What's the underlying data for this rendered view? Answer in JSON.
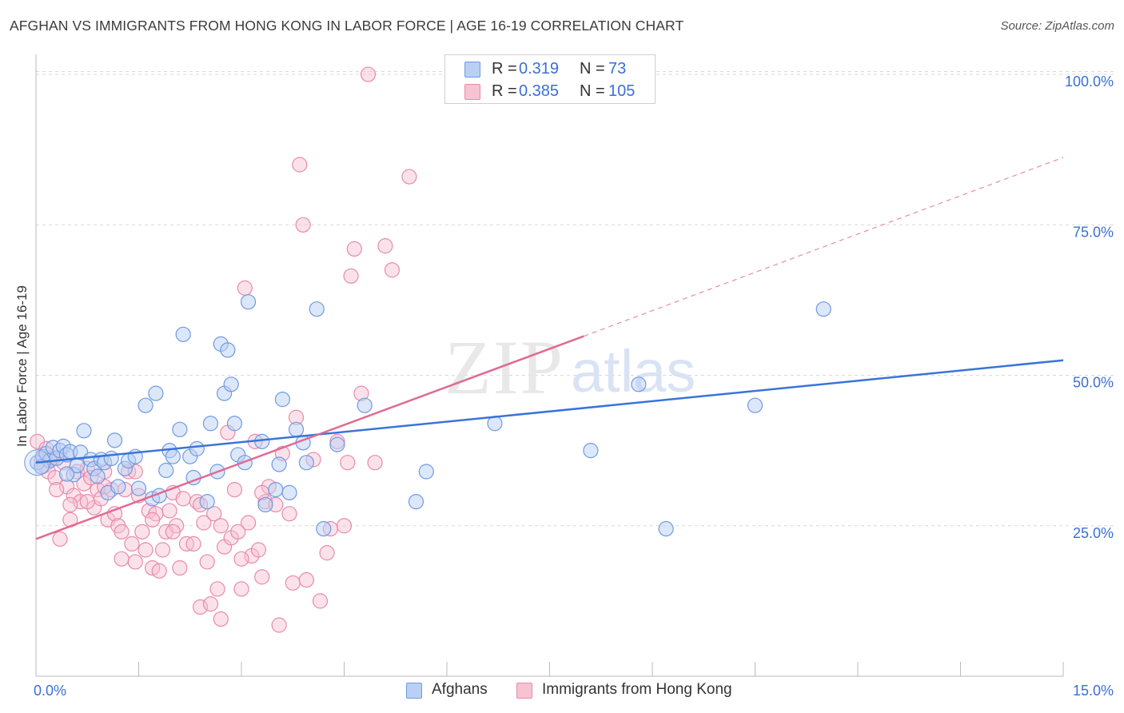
{
  "title": "AFGHAN VS IMMIGRANTS FROM HONG KONG IN LABOR FORCE | AGE 16-19 CORRELATION CHART",
  "source": "Source: ZipAtlas.com",
  "watermark": {
    "zip": "ZIP",
    "atlas": "atlas"
  },
  "colors": {
    "blue": "#3a74d8",
    "blue_fill": "#b9d0f4",
    "pink": "#e06a94",
    "pink_fill": "#f6bfd0",
    "axis_value": "#3a6fd8",
    "grid": "#d9d9d9"
  },
  "legend": {
    "series": [
      {
        "r_label": "R =",
        "r_value": "0.319",
        "n_label": "N =",
        "n_value": "73"
      },
      {
        "r_label": "R =",
        "r_value": "0.385",
        "n_label": "N =",
        "n_value": "105"
      }
    ]
  },
  "bottom_legend": {
    "afghans": "Afghans",
    "hongkong": "Immigrants from Hong Kong"
  },
  "chart_data": {
    "type": "scatter",
    "title": "AFGHAN VS IMMIGRANTS FROM HONG KONG IN LABOR FORCE | AGE 16-19 CORRELATION CHART",
    "xlabel": "",
    "ylabel": "In Labor Force | Age 16-19",
    "xlim": [
      0,
      15
    ],
    "ylim": [
      0,
      102
    ],
    "x_tick_labels": [
      {
        "value": 0,
        "label": "0.0%"
      },
      {
        "value": 15,
        "label": "15.0%"
      }
    ],
    "y_tick_labels": [
      {
        "value": 25,
        "label": "25.0%"
      },
      {
        "value": 50,
        "label": "50.0%"
      },
      {
        "value": 75,
        "label": "75.0%"
      },
      {
        "value": 100,
        "label": "100.0%"
      }
    ],
    "series": [
      {
        "name": "Afghans",
        "color": "#3a74d8",
        "trend": {
          "x0": 0,
          "y0": 35.5,
          "x1": 15,
          "y1": 52.5
        },
        "points": [
          [
            0.02,
            35.5
          ],
          [
            0.1,
            36.5
          ],
          [
            0.15,
            37
          ],
          [
            0.2,
            35.8
          ],
          [
            0.25,
            38
          ],
          [
            0.3,
            36.2
          ],
          [
            0.35,
            37.5
          ],
          [
            0.4,
            38.2
          ],
          [
            0.45,
            36.8
          ],
          [
            0.5,
            37.3
          ],
          [
            0.55,
            33.5
          ],
          [
            0.6,
            35
          ],
          [
            0.65,
            37.2
          ],
          [
            0.7,
            40.8
          ],
          [
            0.8,
            36
          ],
          [
            0.85,
            34.5
          ],
          [
            0.9,
            33.2
          ],
          [
            0.95,
            36
          ],
          [
            1.0,
            35.5
          ],
          [
            1.05,
            30.5
          ],
          [
            1.1,
            36.2
          ],
          [
            1.15,
            39.2
          ],
          [
            1.2,
            31.5
          ],
          [
            1.3,
            34.5
          ],
          [
            1.35,
            35.8
          ],
          [
            1.45,
            36.5
          ],
          [
            1.5,
            31.2
          ],
          [
            1.6,
            45
          ],
          [
            1.7,
            29.5
          ],
          [
            1.75,
            47
          ],
          [
            1.8,
            30
          ],
          [
            1.9,
            34.2
          ],
          [
            1.95,
            37.5
          ],
          [
            2.0,
            36.5
          ],
          [
            2.1,
            41
          ],
          [
            2.15,
            56.8
          ],
          [
            2.25,
            36.5
          ],
          [
            2.3,
            33
          ],
          [
            2.35,
            37.8
          ],
          [
            2.5,
            29
          ],
          [
            2.55,
            42
          ],
          [
            2.65,
            34
          ],
          [
            2.7,
            55.2
          ],
          [
            2.75,
            47
          ],
          [
            2.8,
            54.2
          ],
          [
            2.85,
            48.5
          ],
          [
            2.9,
            42
          ],
          [
            2.95,
            36.8
          ],
          [
            3.05,
            35.5
          ],
          [
            3.1,
            62.2
          ],
          [
            3.3,
            39
          ],
          [
            3.35,
            28.5
          ],
          [
            3.5,
            31
          ],
          [
            3.55,
            35.2
          ],
          [
            3.6,
            46
          ],
          [
            3.7,
            30.5
          ],
          [
            3.8,
            41
          ],
          [
            3.9,
            38.8
          ],
          [
            3.95,
            35.5
          ],
          [
            4.1,
            61
          ],
          [
            4.2,
            24.5
          ],
          [
            4.4,
            38.5
          ],
          [
            4.8,
            45
          ],
          [
            5.55,
            29
          ],
          [
            5.7,
            34
          ],
          [
            6.7,
            42
          ],
          [
            8.1,
            37.5
          ],
          [
            8.8,
            48.5
          ],
          [
            9.2,
            24.5
          ],
          [
            10.5,
            45
          ],
          [
            11.5,
            61
          ],
          [
            0.08,
            34.8
          ],
          [
            0.45,
            33.6
          ]
        ]
      },
      {
        "name": "Immigrants from Hong Kong",
        "color": "#e06a94",
        "trend": {
          "x0": 0,
          "y0": 22.8,
          "x1": 8.0,
          "y1": 56.5
        },
        "trend_dashed": {
          "x0": 8.0,
          "y0": 56.5,
          "x1": 15,
          "y1": 86.2
        },
        "points": [
          [
            0.02,
            39
          ],
          [
            0.08,
            36
          ],
          [
            0.12,
            35
          ],
          [
            0.18,
            34
          ],
          [
            0.22,
            36.5
          ],
          [
            0.28,
            33
          ],
          [
            0.35,
            22.8
          ],
          [
            0.4,
            35.5
          ],
          [
            0.45,
            31.5
          ],
          [
            0.5,
            26
          ],
          [
            0.55,
            30
          ],
          [
            0.6,
            34
          ],
          [
            0.65,
            29
          ],
          [
            0.7,
            32
          ],
          [
            0.75,
            34.5
          ],
          [
            0.8,
            33
          ],
          [
            0.85,
            28
          ],
          [
            0.9,
            31
          ],
          [
            0.95,
            29.5
          ],
          [
            1.0,
            34
          ],
          [
            1.05,
            26
          ],
          [
            1.1,
            31
          ],
          [
            1.15,
            27
          ],
          [
            1.2,
            25
          ],
          [
            1.25,
            19.5
          ],
          [
            1.3,
            31
          ],
          [
            1.35,
            34
          ],
          [
            1.4,
            22
          ],
          [
            1.45,
            19
          ],
          [
            1.5,
            30
          ],
          [
            1.55,
            24
          ],
          [
            1.6,
            21
          ],
          [
            1.65,
            27.5
          ],
          [
            1.7,
            18
          ],
          [
            1.75,
            27
          ],
          [
            1.8,
            17.5
          ],
          [
            1.85,
            21
          ],
          [
            1.9,
            24
          ],
          [
            1.95,
            27.5
          ],
          [
            2.0,
            30.5
          ],
          [
            2.05,
            25
          ],
          [
            2.1,
            18
          ],
          [
            2.15,
            29.5
          ],
          [
            2.2,
            22
          ],
          [
            2.3,
            22
          ],
          [
            2.35,
            29
          ],
          [
            2.4,
            11.5
          ],
          [
            2.45,
            25.5
          ],
          [
            2.5,
            19
          ],
          [
            2.55,
            12
          ],
          [
            2.6,
            27
          ],
          [
            2.65,
            14.5
          ],
          [
            2.7,
            9.5
          ],
          [
            2.75,
            21.5
          ],
          [
            2.8,
            40.5
          ],
          [
            2.85,
            23
          ],
          [
            2.9,
            31
          ],
          [
            2.95,
            24
          ],
          [
            3.0,
            14.5
          ],
          [
            3.05,
            64.5
          ],
          [
            3.1,
            25.5
          ],
          [
            3.15,
            20
          ],
          [
            3.2,
            39
          ],
          [
            3.25,
            21
          ],
          [
            3.3,
            16.5
          ],
          [
            3.35,
            29
          ],
          [
            3.4,
            31.5
          ],
          [
            3.5,
            28.5
          ],
          [
            3.55,
            8.5
          ],
          [
            3.6,
            37
          ],
          [
            3.7,
            27
          ],
          [
            3.75,
            15.5
          ],
          [
            3.8,
            43
          ],
          [
            3.85,
            85
          ],
          [
            3.9,
            75
          ],
          [
            3.95,
            16
          ],
          [
            4.05,
            36
          ],
          [
            4.15,
            12.5
          ],
          [
            4.25,
            20.5
          ],
          [
            4.3,
            24.5
          ],
          [
            4.4,
            39
          ],
          [
            4.5,
            25
          ],
          [
            4.55,
            35.5
          ],
          [
            4.6,
            66.5
          ],
          [
            4.65,
            71
          ],
          [
            4.75,
            47
          ],
          [
            4.85,
            100
          ],
          [
            4.95,
            35.5
          ],
          [
            5.1,
            71.5
          ],
          [
            5.2,
            67.5
          ],
          [
            5.45,
            83
          ],
          [
            0.3,
            31
          ],
          [
            0.5,
            28.5
          ],
          [
            0.75,
            29
          ],
          [
            1.0,
            31.5
          ],
          [
            1.25,
            24
          ],
          [
            1.45,
            34
          ],
          [
            1.7,
            26
          ],
          [
            2.0,
            24
          ],
          [
            2.4,
            28.5
          ],
          [
            2.7,
            25
          ],
          [
            3.0,
            19.5
          ],
          [
            3.3,
            30.5
          ],
          [
            0.15,
            37.8
          ],
          [
            0.25,
            36.2
          ]
        ]
      }
    ]
  }
}
